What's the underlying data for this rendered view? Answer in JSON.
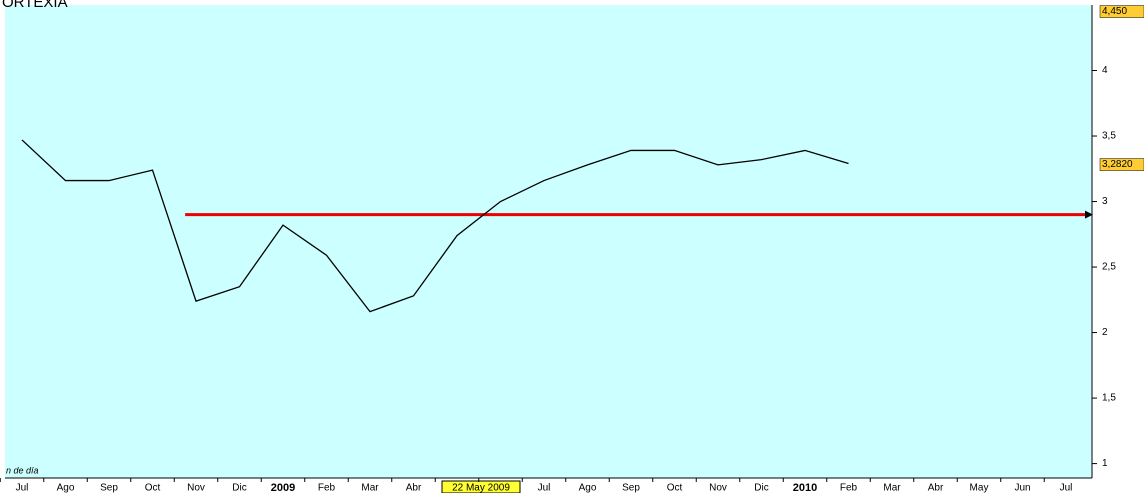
{
  "chart_data": {
    "type": "line",
    "title": "ORTEXIA",
    "note": "n de día",
    "categories": [
      "Jul",
      "Ago",
      "Sep",
      "Oct",
      "Nov",
      "Dic",
      "2009",
      "Feb",
      "Mar",
      "Abr",
      "22 May 2009",
      null,
      "Jul",
      "Ago",
      "Sep",
      "Oct",
      "Nov",
      "Dic",
      "2010",
      "Feb",
      "Mar",
      "Abr",
      "May",
      "Jun",
      "Jul"
    ],
    "values": [
      3.47,
      3.16,
      3.16,
      3.24,
      2.24,
      2.35,
      2.82,
      2.59,
      2.16,
      2.28,
      2.74,
      3.0,
      3.16,
      3.28,
      3.39,
      3.39,
      3.28,
      3.32,
      3.39,
      3.29,
      null,
      null,
      null,
      null,
      null
    ],
    "color": "#000000",
    "ylim": [
      0.89,
      4.5
    ],
    "yticks": [
      1,
      {
        "value": 1.5,
        "label": "1,5"
      },
      2,
      {
        "value": 2.5,
        "label": "2,5"
      },
      3,
      {
        "value": 3.5,
        "label": "3,5"
      },
      4
    ],
    "price_tags": [
      {
        "value": 4.45,
        "label": "4,450"
      },
      {
        "value": 3.282,
        "label": "3,2820"
      }
    ],
    "hline": {
      "value": 2.9,
      "color": "#ee0000"
    },
    "highlight_category": 10
  }
}
